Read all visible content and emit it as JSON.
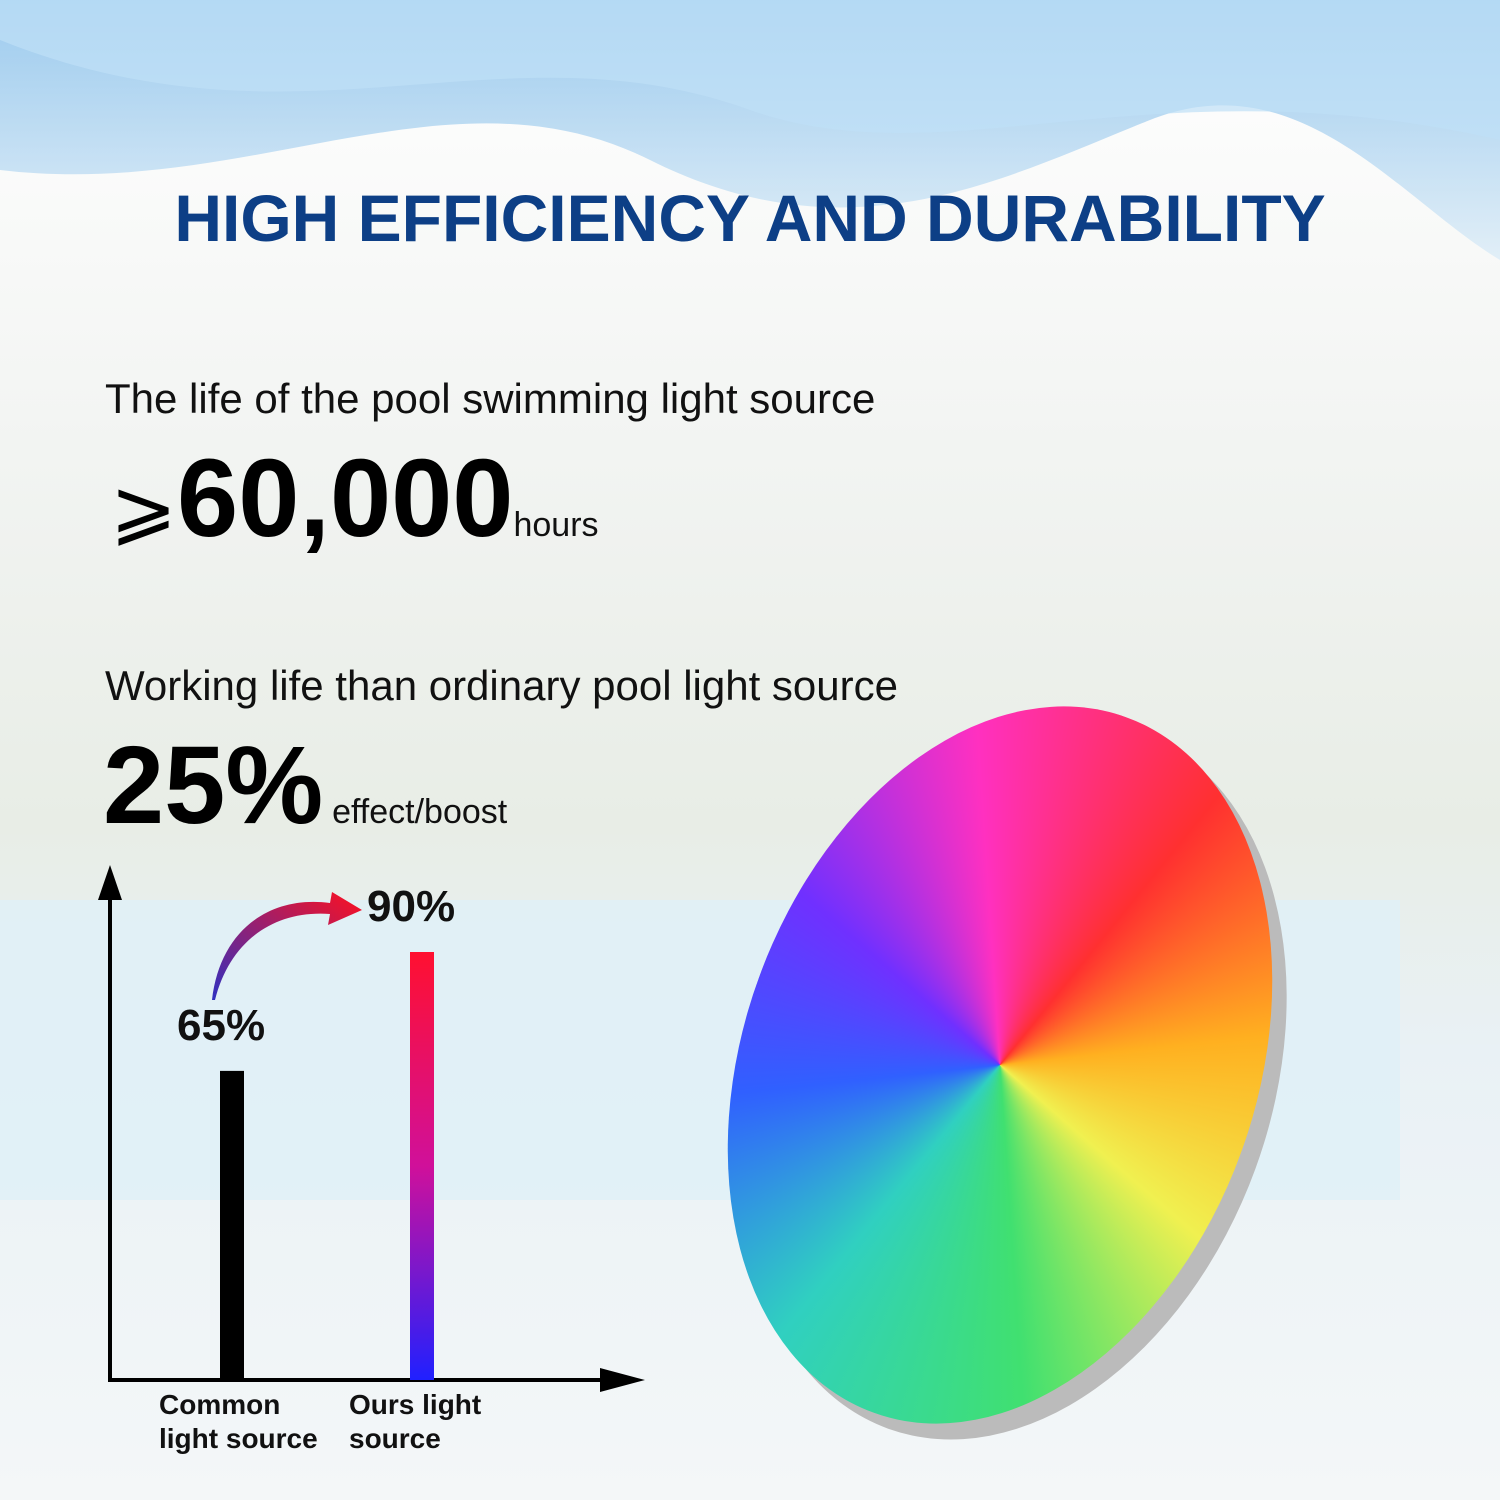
{
  "header": {
    "title": "HIGH EFFICIENCY AND DURABILITY"
  },
  "specs": [
    {
      "caption": "The life of the pool swimming light source",
      "prefix": "⩾",
      "figure": "60,000",
      "unit": "hours"
    },
    {
      "caption": "Working life than ordinary pool light source",
      "figure": "25%",
      "unit": "effect/boost"
    }
  ],
  "chart_data": {
    "type": "bar",
    "categories": [
      "Common light source",
      "Ours light source"
    ],
    "values": [
      65,
      90
    ],
    "value_labels": [
      "65%",
      "90%"
    ],
    "colors": [
      "#000000",
      "#ff1030"
    ]
  }
}
